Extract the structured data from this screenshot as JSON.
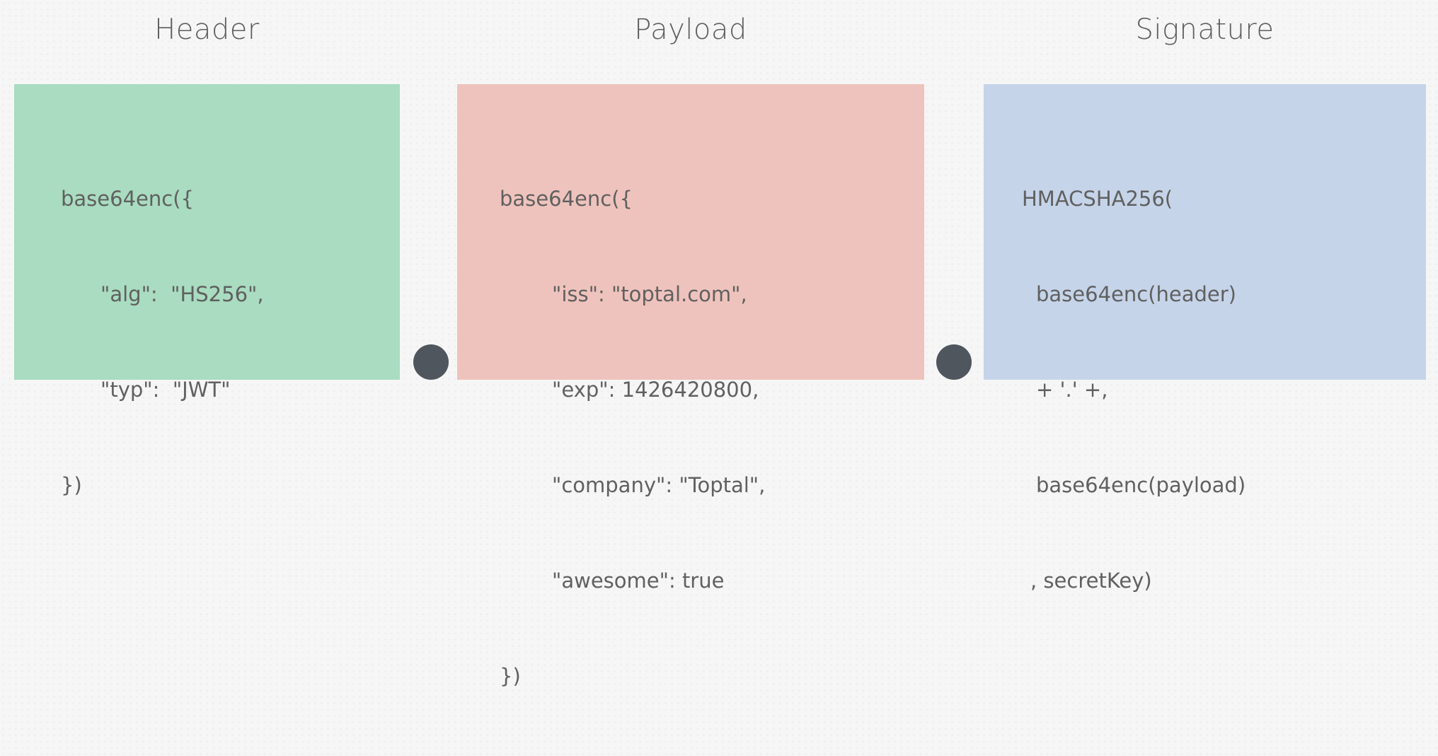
{
  "sections": [
    {
      "heading": "Header",
      "color": "#a9dcc0",
      "lines": [
        "base64enc({",
        "\"alg\":  \"HS256\",",
        "\"typ\":  \"JWT\"",
        "})"
      ]
    },
    {
      "heading": "Payload",
      "color": "#efc3bd",
      "lines": [
        "base64enc({",
        "\"iss\": \"toptal.com\",",
        "\"exp\": 1426420800,",
        "\"company\": \"Toptal\",",
        "\"awesome\": true",
        "})"
      ]
    },
    {
      "heading": "Signature",
      "color": "#c6d4e9",
      "lines": [
        "HMACSHA256(",
        "base64enc(header)",
        "+ '.' +,",
        "base64enc(payload)",
        ", secretKey)"
      ]
    }
  ],
  "separator_color": "#4f565d"
}
